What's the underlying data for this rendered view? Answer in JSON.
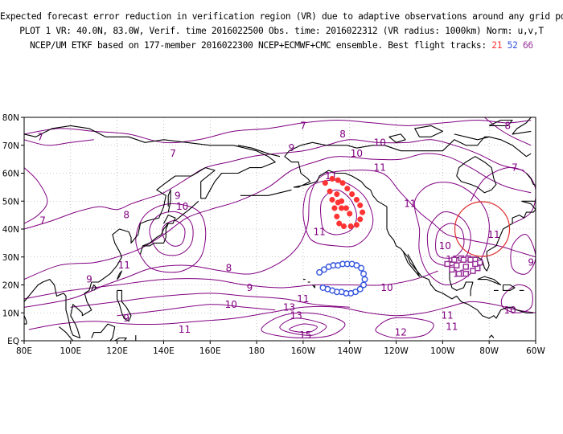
{
  "header": {
    "line1": "Expected forecast error reduction in verification region (VR) due to adaptive observations around any grid point.",
    "line2": "PLOT 1 VR: 40.0N, 83.0W, Verif. time 2016022500 Obs. time: 2016022312 (VR radius: 1000km) Norm: u,v,T",
    "line3_prefix": "NCEP/UM ETKF based on 177-member 2016022300 NCEP+ECMWF+CMC ensemble. Best flight tracks:",
    "tracks": [
      {
        "label": "21",
        "color": "#ff3333"
      },
      {
        "label": "52",
        "color": "#3355dd"
      },
      {
        "label": "66",
        "color": "#993399"
      }
    ]
  },
  "map": {
    "lat_ticks": [
      "80N",
      "70N",
      "60N",
      "50N",
      "40N",
      "30N",
      "20N",
      "10N",
      "EQ"
    ],
    "lon_ticks": [
      "80E",
      "100E",
      "120E",
      "140E",
      "160E",
      "180",
      "160W",
      "140W",
      "120W",
      "100W",
      "80W",
      "60W"
    ],
    "contour_color": "#800080",
    "land_color": "#000000",
    "grid_color": "#999999",
    "vr_circle_color": "#e03030",
    "contour_labels": [
      {
        "v": "7",
        "lon": 87,
        "lat": 73
      },
      {
        "v": "7",
        "lon": 88,
        "lat": 43
      },
      {
        "v": "8",
        "lon": 124,
        "lat": 45
      },
      {
        "v": "9",
        "lon": 146,
        "lat": 52
      },
      {
        "v": "10",
        "lon": 148,
        "lat": 48
      },
      {
        "v": "7",
        "lon": 144,
        "lat": 67
      },
      {
        "v": "11",
        "lon": 123,
        "lat": 27
      },
      {
        "v": "9",
        "lon": 108,
        "lat": 22
      },
      {
        "v": "8",
        "lon": 168,
        "lat": 26
      },
      {
        "v": "9",
        "lon": 177,
        "lat": 19
      },
      {
        "v": "10",
        "lon": 169,
        "lat": 13
      },
      {
        "v": "9",
        "lon": 124,
        "lat": 8
      },
      {
        "v": "11",
        "lon": 149,
        "lat": 4
      },
      {
        "v": "13",
        "lon": -166,
        "lat": 12
      },
      {
        "v": "11",
        "lon": -160,
        "lat": 15
      },
      {
        "v": "13",
        "lon": -163,
        "lat": 9
      },
      {
        "v": "15",
        "lon": -159,
        "lat": 2
      },
      {
        "v": "10",
        "lon": -124,
        "lat": 19
      },
      {
        "v": "7",
        "lon": -160,
        "lat": 77
      },
      {
        "v": "8",
        "lon": -143,
        "lat": 74
      },
      {
        "v": "9",
        "lon": -165,
        "lat": 69
      },
      {
        "v": "10",
        "lon": -137,
        "lat": 67
      },
      {
        "v": "11",
        "lon": -127,
        "lat": 62
      },
      {
        "v": "10",
        "lon": -127,
        "lat": 71
      },
      {
        "v": "11",
        "lon": -148,
        "lat": 59
      },
      {
        "v": "11",
        "lon": -114,
        "lat": 49
      },
      {
        "v": "11",
        "lon": -153,
        "lat": 39
      },
      {
        "v": "10",
        "lon": -99,
        "lat": 34
      },
      {
        "v": "11",
        "lon": -96,
        "lat": 29
      },
      {
        "v": "10",
        "lon": -93,
        "lat": 24
      },
      {
        "v": "9",
        "lon": -62,
        "lat": 28
      },
      {
        "v": "11",
        "lon": -78,
        "lat": 38
      },
      {
        "v": "7",
        "lon": -69,
        "lat": 62
      },
      {
        "v": "8",
        "lon": -72,
        "lat": 77
      },
      {
        "v": "10",
        "lon": -71,
        "lat": 11
      },
      {
        "v": "11",
        "lon": -98,
        "lat": 9
      },
      {
        "v": "11",
        "lon": -96,
        "lat": 5
      },
      {
        "v": "12",
        "lon": -118,
        "lat": 3
      }
    ],
    "track_21": [
      [
        -150.5,
        56.5
      ],
      [
        -148.5,
        53.5
      ],
      [
        -147.5,
        50.5
      ],
      [
        -146.5,
        47.5
      ],
      [
        -145.5,
        44.5
      ],
      [
        -144.5,
        42.0
      ],
      [
        -142.5,
        41.0
      ],
      [
        -139.5,
        41.0
      ],
      [
        -137.0,
        41.5
      ],
      [
        -135.5,
        43.5
      ],
      [
        -134.5,
        46.0
      ],
      [
        -135.5,
        48.5
      ],
      [
        -137.0,
        50.5
      ],
      [
        -139.0,
        52.5
      ],
      [
        -141.0,
        54.5
      ],
      [
        -143.0,
        56.5
      ],
      [
        -145.0,
        57.5
      ],
      [
        -147.5,
        58.0
      ],
      [
        -145.5,
        52.5
      ],
      [
        -143.5,
        50.0
      ],
      [
        -141.5,
        47.5
      ],
      [
        -140.0,
        45.5
      ],
      [
        -143.5,
        47.5
      ],
      [
        -145.0,
        49.5
      ]
    ],
    "track_52": [
      [
        -153,
        24.5
      ],
      [
        -151,
        25.5
      ],
      [
        -149,
        26.5
      ],
      [
        -147,
        27.0
      ],
      [
        -145,
        27.0
      ],
      [
        -143,
        27.5
      ],
      [
        -141,
        27.5
      ],
      [
        -139,
        27.5
      ],
      [
        -137,
        27.0
      ],
      [
        -135,
        26.0
      ],
      [
        -134,
        24.0
      ],
      [
        -133.5,
        22.0
      ],
      [
        -134,
        20.0
      ],
      [
        -135.5,
        18.5
      ],
      [
        -137.5,
        17.5
      ],
      [
        -139.5,
        17.0
      ],
      [
        -141.5,
        17.0
      ],
      [
        -143.5,
        17.5
      ],
      [
        -145.5,
        17.5
      ],
      [
        -147.5,
        18.0
      ],
      [
        -149.5,
        18.5
      ],
      [
        -151.5,
        19.0
      ]
    ],
    "track_66": [
      [
        -95,
        29.0
      ],
      [
        -92,
        29.5
      ],
      [
        -89,
        29.5
      ],
      [
        -86,
        29.0
      ],
      [
        -84,
        28.0
      ],
      [
        -85,
        26.0
      ],
      [
        -87,
        25.0
      ],
      [
        -90,
        24.0
      ],
      [
        -93,
        24.0
      ],
      [
        -96,
        25.5
      ],
      [
        -98,
        27.5
      ],
      [
        -94,
        27.0
      ],
      [
        -90,
        26.5
      ],
      [
        -91,
        29.0
      ],
      [
        -88,
        29.0
      ],
      [
        -86,
        27.5
      ]
    ]
  }
}
